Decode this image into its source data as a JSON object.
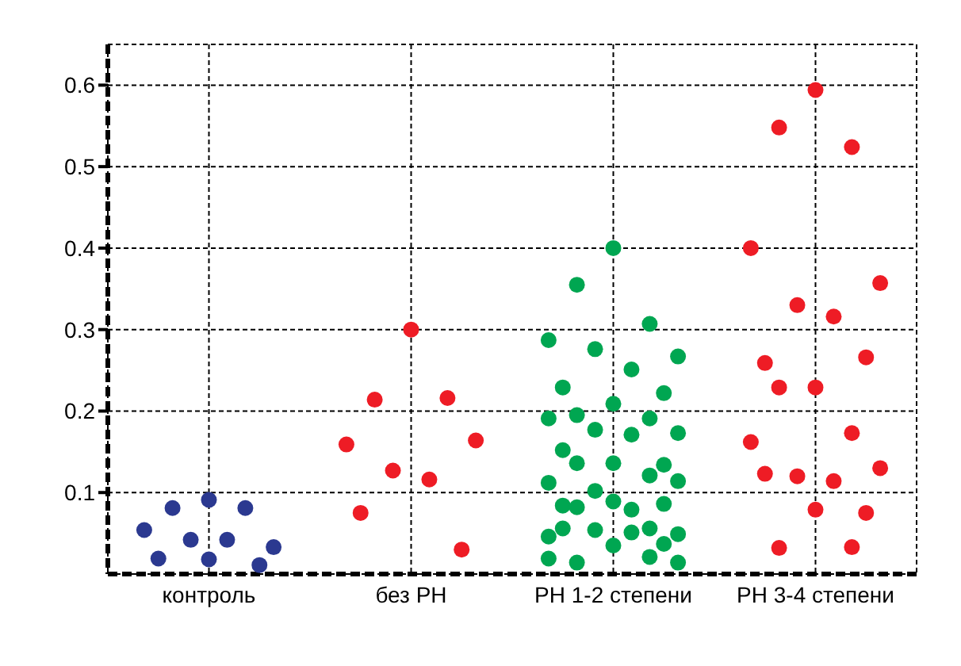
{
  "chart_data": {
    "type": "scatter",
    "categories": [
      "контроль",
      "без РН",
      "РН 1-2 степени",
      "РН 3-4 степени"
    ],
    "ylim": [
      0,
      0.65
    ],
    "yticks": [
      0.1,
      0.2,
      0.3,
      0.4,
      0.5,
      0.6
    ],
    "grid": true,
    "marker": "circle",
    "series": [
      {
        "color": "#2b3990",
        "x": [
          "контроль",
          "контроль",
          "контроль",
          "контроль",
          "контроль",
          "контроль",
          "контроль",
          "контроль",
          "контроль",
          "контроль"
        ],
        "values": [
          0.091,
          0.081,
          0.081,
          0.054,
          0.033,
          0.042,
          0.042,
          0.019,
          0.011,
          0.018
        ]
      },
      {
        "color": "#ee1c25",
        "x": [
          "без РН",
          "без РН",
          "без РН",
          "без РН",
          "без РН",
          "без РН",
          "без РН",
          "без РН",
          "без РН"
        ],
        "values": [
          0.3,
          0.214,
          0.216,
          0.159,
          0.164,
          0.127,
          0.116,
          0.075,
          0.03
        ]
      },
      {
        "color": "#00a651",
        "x": [
          "РН 1-2 степени",
          "РН 1-2 степени",
          "РН 1-2 степени",
          "РН 1-2 степени",
          "РН 1-2 степени",
          "РН 1-2 степени",
          "РН 1-2 степени",
          "РН 1-2 степени",
          "РН 1-2 степени",
          "РН 1-2 степени",
          "РН 1-2 степени",
          "РН 1-2 степени",
          "РН 1-2 степени",
          "РН 1-2 степени",
          "РН 1-2 степени",
          "РН 1-2 степени",
          "РН 1-2 степени",
          "РН 1-2 степени",
          "РН 1-2 степени",
          "РН 1-2 степени",
          "РН 1-2 степени",
          "РН 1-2 степени",
          "РН 1-2 степени",
          "РН 1-2 степени",
          "РН 1-2 степени",
          "РН 1-2 степени",
          "РН 1-2 степени",
          "РН 1-2 степени",
          "РН 1-2 степени",
          "РН 1-2 степени",
          "РН 1-2 степени",
          "РН 1-2 степени",
          "РН 1-2 степени",
          "РН 1-2 степени",
          "РН 1-2 степени",
          "РН 1-2 степени",
          "РН 1-2 степени",
          "РН 1-2 степени",
          "РН 1-2 степени",
          "РН 1-2 степени",
          "РН 1-2 степени"
        ],
        "values": [
          0.4,
          0.355,
          0.307,
          0.287,
          0.267,
          0.276,
          0.251,
          0.229,
          0.222,
          0.209,
          0.195,
          0.191,
          0.191,
          0.173,
          0.177,
          0.171,
          0.152,
          0.134,
          0.136,
          0.136,
          0.121,
          0.112,
          0.114,
          0.102,
          0.079,
          0.084,
          0.086,
          0.089,
          0.082,
          0.056,
          0.046,
          0.049,
          0.054,
          0.051,
          0.056,
          0.037,
          0.035,
          0.014,
          0.021,
          0.019,
          0.014
        ]
      },
      {
        "color": "#ee1c25",
        "x": [
          "РН 3-4 степени",
          "РН 3-4 степени",
          "РН 3-4 степени",
          "РН 3-4 степени",
          "РН 3-4 степени",
          "РН 3-4 степени",
          "РН 3-4 степени",
          "РН 3-4 степени",
          "РН 3-4 степени",
          "РН 3-4 степени",
          "РН 3-4 степени",
          "РН 3-4 степени",
          "РН 3-4 степени",
          "РН 3-4 степени",
          "РН 3-4 степени",
          "РН 3-4 степени",
          "РН 3-4 степени",
          "РН 3-4 степени",
          "РН 3-4 степени",
          "РН 3-4 степени",
          "РН 3-4 степени"
        ],
        "values": [
          0.594,
          0.548,
          0.524,
          0.4,
          0.357,
          0.33,
          0.316,
          0.259,
          0.266,
          0.229,
          0.229,
          0.173,
          0.162,
          0.13,
          0.12,
          0.114,
          0.123,
          0.075,
          0.079,
          0.032,
          0.033
        ]
      }
    ]
  }
}
